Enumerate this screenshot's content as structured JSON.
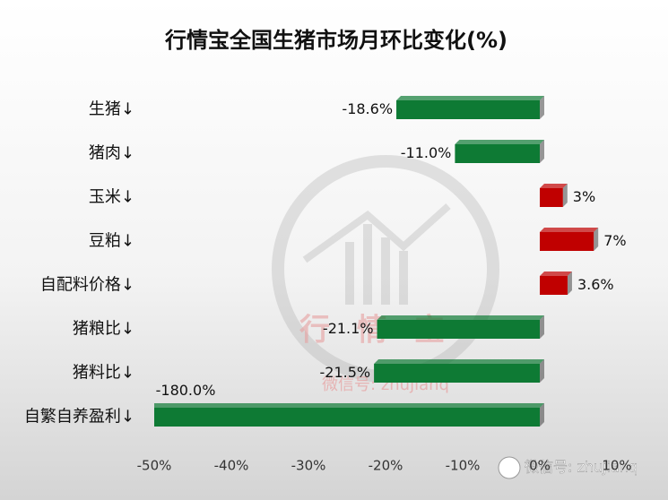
{
  "chart_data": {
    "type": "hbar",
    "title": "行情宝全国生猪市场月环比变化(%)",
    "categories": [
      "生猪↓",
      "猪肉↓",
      "玉米↓",
      "豆粕↓",
      "自配料价格↓",
      "猪粮比↓",
      "猪料比↓",
      "自繁自养盈利↓"
    ],
    "values": [
      -18.6,
      -11.0,
      3,
      7,
      3.6,
      -21.1,
      -21.5,
      -180.0
    ],
    "value_labels": [
      "-18.6%",
      "-11.0%",
      "3%",
      "7%",
      "3.6%",
      "-21.1%",
      "-21.5%",
      "-180.0%"
    ],
    "colors": [
      "#0e7a34",
      "#0e7a34",
      "#c00000",
      "#c00000",
      "#c00000",
      "#0e7a34",
      "#0e7a34",
      "#0e7a34"
    ],
    "xlim": [
      -50,
      10
    ],
    "xticks": [
      {
        "value": -50,
        "label": "-50%"
      },
      {
        "value": -40,
        "label": "-40%"
      },
      {
        "value": -30,
        "label": "-30%"
      },
      {
        "value": -20,
        "label": "-20%"
      },
      {
        "value": -10,
        "label": "-10%"
      },
      {
        "value": 0,
        "label": "0%"
      },
      {
        "value": 10,
        "label": "10%"
      }
    ],
    "logo_text": "行情宝",
    "watermark": "微信号: zhujianq"
  }
}
